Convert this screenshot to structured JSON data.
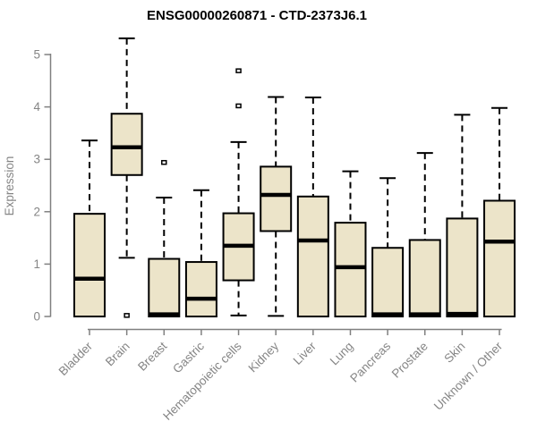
{
  "colors": {
    "background": "#ffffff",
    "box_fill": "#ece4c9",
    "box_stroke": "#000000",
    "median": "#000000",
    "whisker": "#000000",
    "axis": "#808080",
    "tick_label": "#858585",
    "title": "#000000"
  },
  "chart_data": {
    "type": "boxplot",
    "title": "ENSG00000260871 - CTD-2373J6.1",
    "ylabel": "Expression",
    "xlabel": "",
    "ylim": [
      0,
      5
    ],
    "yticks": [
      "0",
      "1",
      "2",
      "3",
      "4",
      "5"
    ],
    "grid": false,
    "legend": false,
    "categories": [
      "Bladder",
      "Brain",
      "Breast",
      "Gastric",
      "Hematopoietic cells",
      "Kidney",
      "Liver",
      "Lung",
      "Pancreas",
      "Prostate",
      "Skin",
      "Unknown / Other"
    ],
    "series": [
      {
        "category": "Bladder",
        "whisker_low": 0,
        "q1": 0,
        "median": 0.72,
        "q3": 1.96,
        "whisker_high": 3.36,
        "outliers": []
      },
      {
        "category": "Brain",
        "whisker_low": 1.12,
        "q1": 2.7,
        "median": 3.23,
        "q3": 3.87,
        "whisker_high": 5.31,
        "outliers": [
          0.02
        ]
      },
      {
        "category": "Breast",
        "whisker_low": 0,
        "q1": 0,
        "median": 0.04,
        "q3": 1.1,
        "whisker_high": 2.27,
        "outliers": [
          2.94
        ]
      },
      {
        "category": "Gastric",
        "whisker_low": 0,
        "q1": 0,
        "median": 0.34,
        "q3": 1.04,
        "whisker_high": 2.41,
        "outliers": []
      },
      {
        "category": "Hematopoietic cells",
        "whisker_low": 0.02,
        "q1": 0.69,
        "median": 1.35,
        "q3": 1.97,
        "whisker_high": 3.33,
        "outliers": [
          4.02,
          4.69
        ]
      },
      {
        "category": "Kidney",
        "whisker_low": 0.01,
        "q1": 1.63,
        "median": 2.32,
        "q3": 2.86,
        "whisker_high": 4.19,
        "outliers": []
      },
      {
        "category": "Liver",
        "whisker_low": 0,
        "q1": 0,
        "median": 1.45,
        "q3": 2.29,
        "whisker_high": 4.18,
        "outliers": []
      },
      {
        "category": "Lung",
        "whisker_low": 0,
        "q1": 0,
        "median": 0.94,
        "q3": 1.79,
        "whisker_high": 2.77,
        "outliers": []
      },
      {
        "category": "Pancreas",
        "whisker_low": 0,
        "q1": 0,
        "median": 0.04,
        "q3": 1.31,
        "whisker_high": 2.64,
        "outliers": []
      },
      {
        "category": "Prostate",
        "whisker_low": 0,
        "q1": 0,
        "median": 0.04,
        "q3": 1.46,
        "whisker_high": 3.12,
        "outliers": []
      },
      {
        "category": "Skin",
        "whisker_low": 0,
        "q1": 0,
        "median": 0.05,
        "q3": 1.87,
        "whisker_high": 3.85,
        "outliers": []
      },
      {
        "category": "Unknown / Other",
        "whisker_low": 0,
        "q1": 0,
        "median": 1.43,
        "q3": 2.21,
        "whisker_high": 3.98,
        "outliers": []
      }
    ]
  }
}
